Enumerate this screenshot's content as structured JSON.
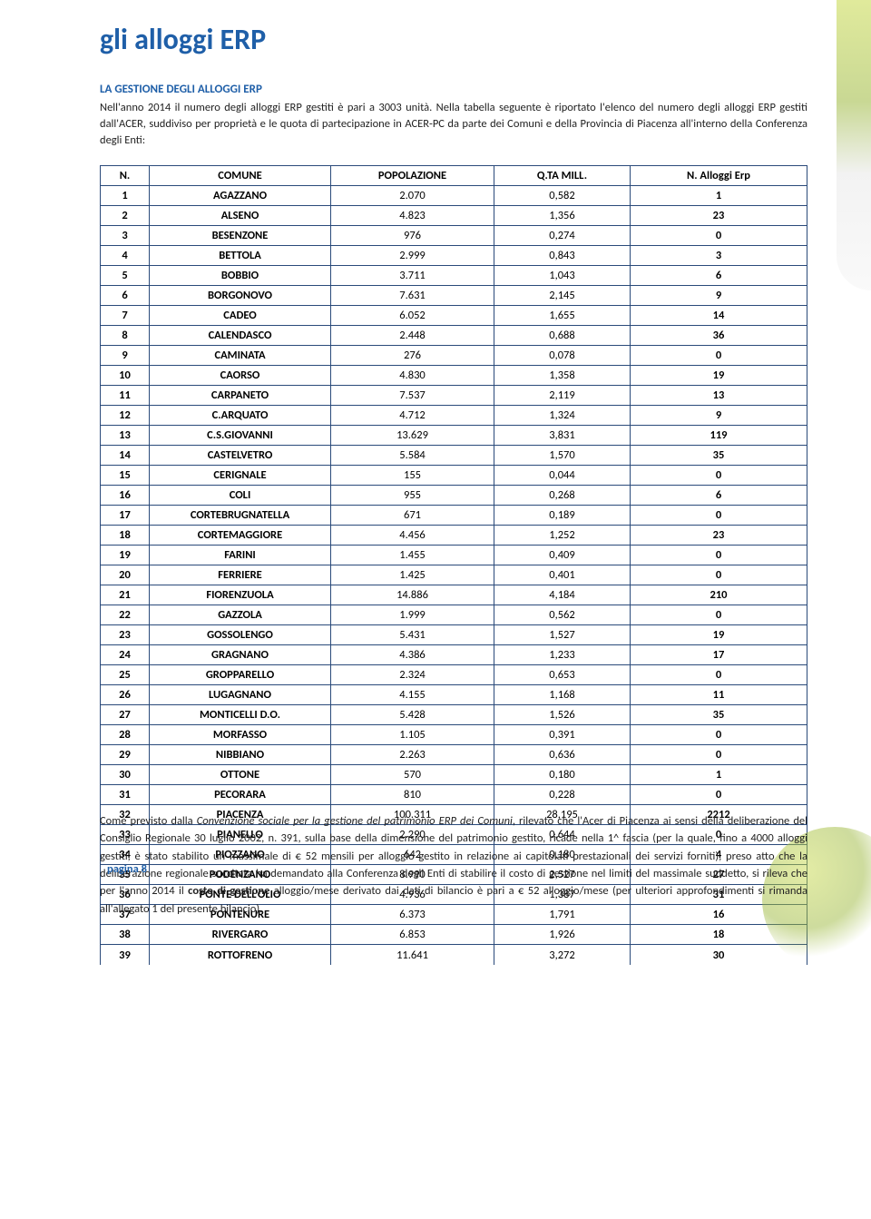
{
  "title": "gli alloggi ERP",
  "subhead": "LA GESTIONE DEGLI ALLOGGI ERP",
  "intro": "Nell'anno 2014 il numero degli alloggi ERP gestiti è pari a 3003 unità. Nella tabella seguente è riportato l'elenco del numero degli alloggi ERP gestiti dall'ACER, suddiviso per proprietà e le quota di partecipazione in ACER-PC da parte dei Comuni e della Provincia di Piacenza all'interno della Conferenza degli Enti:",
  "headers": {
    "n": "N.",
    "com": "COMUNE",
    "pop": "POPOLAZIONE",
    "q": "Q.TA MILL.",
    "erp": "N. Alloggi Erp"
  },
  "rows": [
    [
      "1",
      "AGAZZANO",
      "2.070",
      "0,582",
      "1"
    ],
    [
      "2",
      "ALSENO",
      "4.823",
      "1,356",
      "23"
    ],
    [
      "3",
      "BESENZONE",
      "976",
      "0,274",
      "0"
    ],
    [
      "4",
      "BETTOLA",
      "2.999",
      "0,843",
      "3"
    ],
    [
      "5",
      "BOBBIO",
      "3.711",
      "1,043",
      "6"
    ],
    [
      "6",
      "BORGONOVO",
      "7.631",
      "2,145",
      "9"
    ],
    [
      "7",
      "CADEO",
      "6.052",
      "1,655",
      "14"
    ],
    [
      "8",
      "CALENDASCO",
      "2.448",
      "0,688",
      "36"
    ],
    [
      "9",
      "CAMINATA",
      "276",
      "0,078",
      "0"
    ],
    [
      "10",
      "CAORSO",
      "4.830",
      "1,358",
      "19"
    ],
    [
      "11",
      "CARPANETO",
      "7.537",
      "2,119",
      "13"
    ],
    [
      "12",
      "C.ARQUATO",
      "4.712",
      "1,324",
      "9"
    ],
    [
      "13",
      "C.S.GIOVANNI",
      "13.629",
      "3,831",
      "119"
    ],
    [
      "14",
      "CASTELVETRO",
      "5.584",
      "1,570",
      "35"
    ],
    [
      "15",
      "CERIGNALE",
      "155",
      "0,044",
      "0"
    ],
    [
      "16",
      "COLI",
      "955",
      "0,268",
      "6"
    ],
    [
      "17",
      "CORTEBRUGNATELLA",
      "671",
      "0,189",
      "0"
    ],
    [
      "18",
      "CORTEMAGGIORE",
      "4.456",
      "1,252",
      "23"
    ],
    [
      "19",
      "FARINI",
      "1.455",
      "0,409",
      "0"
    ],
    [
      "20",
      "FERRIERE",
      "1.425",
      "0,401",
      "0"
    ],
    [
      "21",
      "FIORENZUOLA",
      "14.886",
      "4,184",
      "210"
    ],
    [
      "22",
      "GAZZOLA",
      "1.999",
      "0,562",
      "0"
    ],
    [
      "23",
      "GOSSOLENGO",
      "5.431",
      "1,527",
      "19"
    ],
    [
      "24",
      "GRAGNANO",
      "4.386",
      "1,233",
      "17"
    ],
    [
      "25",
      "GROPPARELLO",
      "2.324",
      "0,653",
      "0"
    ],
    [
      "26",
      "LUGAGNANO",
      "4.155",
      "1,168",
      "11"
    ],
    [
      "27",
      "MONTICELLI D.O.",
      "5.428",
      "1,526",
      "35"
    ],
    [
      "28",
      "MORFASSO",
      "1.105",
      "0,391",
      "0"
    ],
    [
      "29",
      "NIBBIANO",
      "2.263",
      "0,636",
      "0"
    ],
    [
      "30",
      "OTTONE",
      "570",
      "0,180",
      "1"
    ],
    [
      "31",
      "PECORARA",
      "810",
      "0,228",
      "0"
    ],
    [
      "32",
      "PIACENZA",
      "100.311",
      "28,195",
      "2212"
    ],
    [
      "33",
      "PIANELLO",
      "2.290",
      "0,644",
      "0"
    ],
    [
      "34",
      "PIOZZANO",
      "642",
      "0,180",
      "4"
    ],
    [
      "35",
      "PODENZANO",
      "8.990",
      "2,527",
      "27"
    ],
    [
      "36",
      "PONTE DELL'OLIO",
      "4.936",
      "1,387",
      "31"
    ],
    [
      "37",
      "PONTENURE",
      "6.373",
      "1,791",
      "16"
    ],
    [
      "38",
      "RIVERGARO",
      "6.853",
      "1,926",
      "18"
    ],
    [
      "39",
      "ROTTOFRENO",
      "11.641",
      "3,272",
      "30"
    ]
  ],
  "overlay": "Come previsto dalla <em>Convenzione sociale per la gestione del patrimonio ERP dei Comuni</em>, rilevato che l'Acer di Piacenza ai sensi della deliberazione del Consiglio Regionale 30 luglio 2002, n. 391, sulla base della dimensione del patrimonio gestito, ricade nella 1^ fascia (per la quale, fino a 4000 alloggi gestiti, è stato stabilito un massimale di € 52 mensili per alloggio gestito in relazione ai capitolati prestazionali dei servizi forniti), preso atto che la deliberazione regionale succitata ha demandato alla Conferenza degli Enti di stabilire il costo di gestione nel limiti del massimale suddetto, si rileva che per l'anno 2014 il <strong>costo di gestione</strong> alloggio/mese derivato dai dati di bilancio è pari a € 52 alloggio/mese (per ulteriori approfondimenti si rimanda all'allegato 1 del presente bilancio).",
  "page_num": "pagina 8",
  "colors": {
    "brand": "#1f5fa8",
    "border": "#2a4a7a",
    "accent": "#9cb83c"
  }
}
